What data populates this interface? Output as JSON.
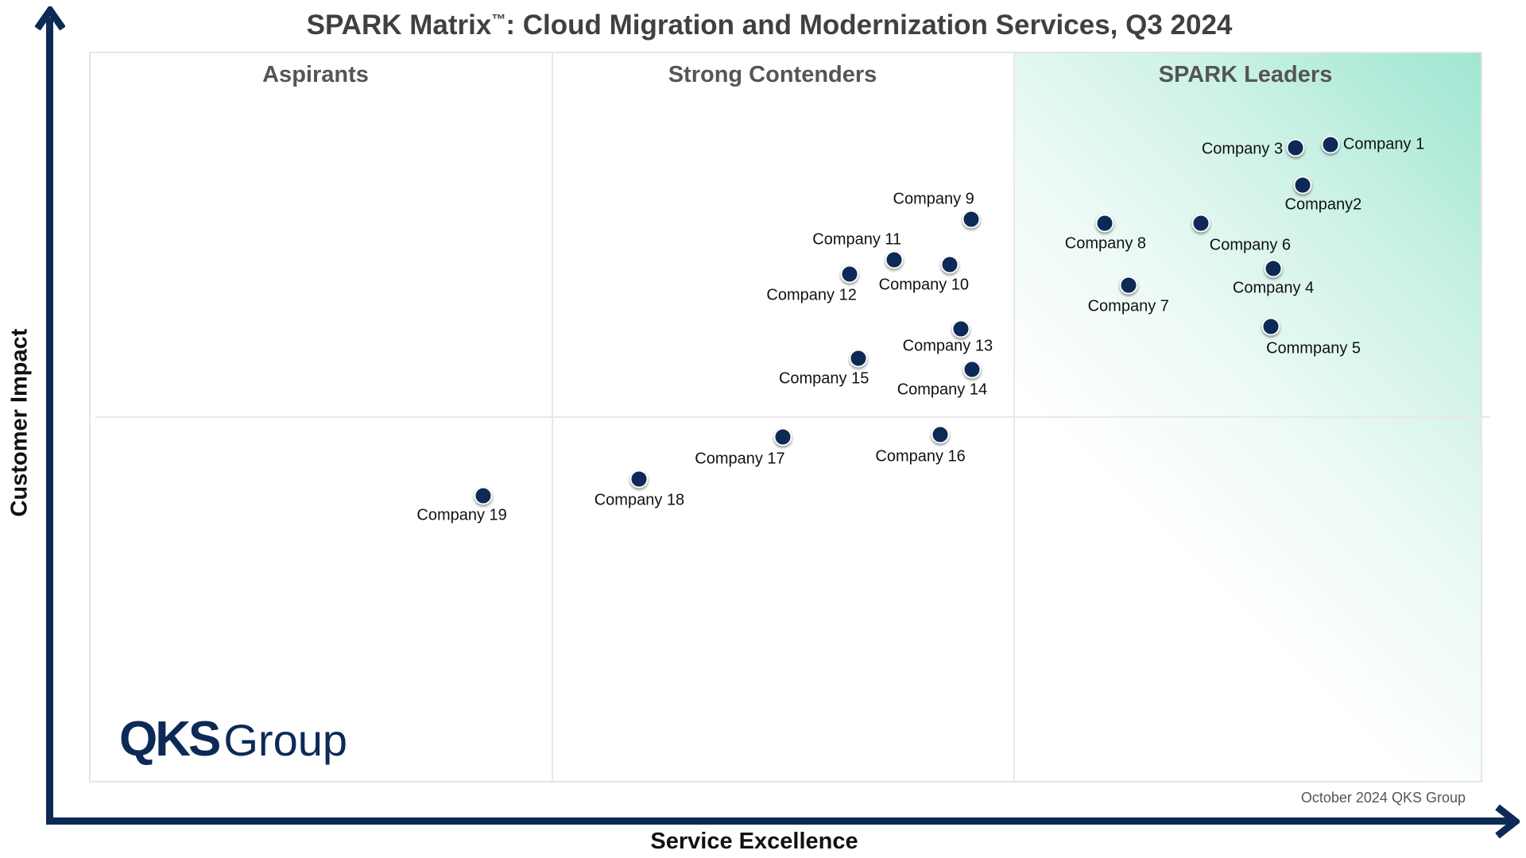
{
  "chart_data": {
    "type": "scatter",
    "title": "SPARK Matrix",
    "title_mark": "™",
    "title_rest": ": Cloud Migration and Modernization Services, Q3 2024",
    "xlabel": "Service Excellence",
    "ylabel": "Customer Impact",
    "xlim": [
      0,
      100
    ],
    "ylim": [
      0,
      100
    ],
    "grid": false,
    "quadrants": [
      {
        "label": "Aspirants"
      },
      {
        "label": "Strong Contenders"
      },
      {
        "label": "SPARK Leaders"
      }
    ],
    "quadrant_boundaries_x": [
      33.2,
      66.4
    ],
    "quadrant_boundary_y": 50,
    "colors": {
      "dot": "#0c2a55",
      "axis": "#0c2a55",
      "leaders_gradient": "#9ee6d1"
    },
    "points": [
      {
        "name": "Company 1",
        "x": 89.1,
        "y": 87.3,
        "label_pos": "right"
      },
      {
        "name": "Company2",
        "x": 87.1,
        "y": 81.7,
        "label_pos": "below"
      },
      {
        "name": "Company 3",
        "x": 86.6,
        "y": 86.8,
        "label_pos": "left"
      },
      {
        "name": "Company 4",
        "x": 85.0,
        "y": 70.3,
        "label_pos": "below"
      },
      {
        "name": "Commpany 5",
        "x": 84.8,
        "y": 62.4,
        "label_pos": "below"
      },
      {
        "name": "Company 6",
        "x": 79.8,
        "y": 76.5,
        "label_pos": "below"
      },
      {
        "name": "Company 7",
        "x": 74.6,
        "y": 68.0,
        "label_pos": "below"
      },
      {
        "name": "Company 8",
        "x": 72.9,
        "y": 76.5,
        "label_pos": "below"
      },
      {
        "name": "Company 9",
        "x": 63.3,
        "y": 77.1,
        "label_pos": "above"
      },
      {
        "name": "Company 10",
        "x": 61.8,
        "y": 70.9,
        "label_pos": "below"
      },
      {
        "name": "Company 11",
        "x": 57.8,
        "y": 71.5,
        "label_pos": "above"
      },
      {
        "name": "Company 12",
        "x": 54.6,
        "y": 69.6,
        "label_pos": "below"
      },
      {
        "name": "Company 13",
        "x": 62.6,
        "y": 62.1,
        "label_pos": "below"
      },
      {
        "name": "Company 14",
        "x": 63.4,
        "y": 56.5,
        "label_pos": "below"
      },
      {
        "name": "Company 15",
        "x": 55.2,
        "y": 58.0,
        "label_pos": "below"
      },
      {
        "name": "Company 16",
        "x": 61.1,
        "y": 47.6,
        "label_pos": "below"
      },
      {
        "name": "Company 17",
        "x": 49.8,
        "y": 47.3,
        "label_pos": "below"
      },
      {
        "name": "Company 18",
        "x": 39.5,
        "y": 41.5,
        "label_pos": "below"
      },
      {
        "name": "Company 19",
        "x": 28.3,
        "y": 39.2,
        "label_pos": "below"
      }
    ]
  },
  "footer": "October 2024 QKS Group",
  "logo": {
    "bold": "QKS",
    "regular": "Group"
  }
}
